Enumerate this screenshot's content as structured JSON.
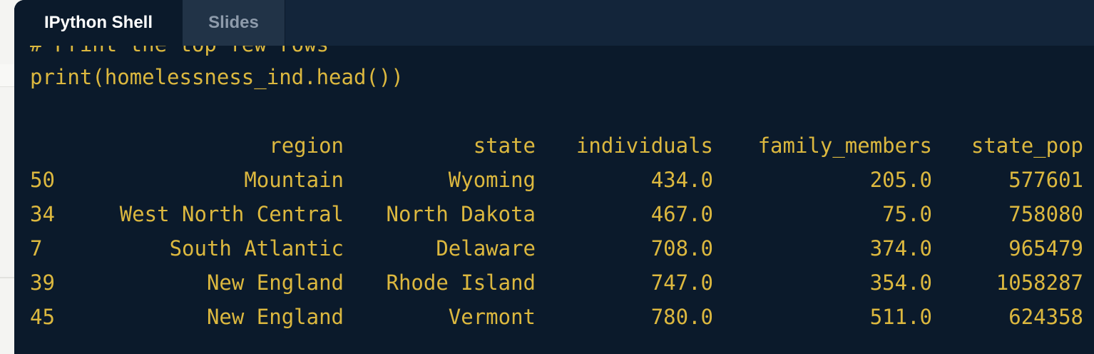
{
  "tabs": [
    {
      "label": "IPython Shell",
      "active": true
    },
    {
      "label": "Slides",
      "active": false
    }
  ],
  "console": {
    "partial_comment": "# Print the top few rows",
    "command": "print(homelessness_ind.head())"
  },
  "table": {
    "columns": [
      "region",
      "state",
      "individuals",
      "family_members",
      "state_pop"
    ],
    "rows": [
      {
        "index": "50",
        "region": "Mountain",
        "state": "Wyoming",
        "individuals": "434.0",
        "family_members": "205.0",
        "state_pop": "577601"
      },
      {
        "index": "34",
        "region": "West North Central",
        "state": "North Dakota",
        "individuals": "467.0",
        "family_members": "75.0",
        "state_pop": "758080"
      },
      {
        "index": "7",
        "region": "South Atlantic",
        "state": "Delaware",
        "individuals": "708.0",
        "family_members": "374.0",
        "state_pop": "965479"
      },
      {
        "index": "39",
        "region": "New England",
        "state": "Rhode Island",
        "individuals": "747.0",
        "family_members": "354.0",
        "state_pop": "1058287"
      },
      {
        "index": "45",
        "region": "New England",
        "state": "Vermont",
        "individuals": "780.0",
        "family_members": "511.0",
        "state_pop": "624358"
      }
    ]
  },
  "colors": {
    "background": "#0b1a2b",
    "tabbar": "#13253a",
    "output_text": "#dcb83f"
  }
}
